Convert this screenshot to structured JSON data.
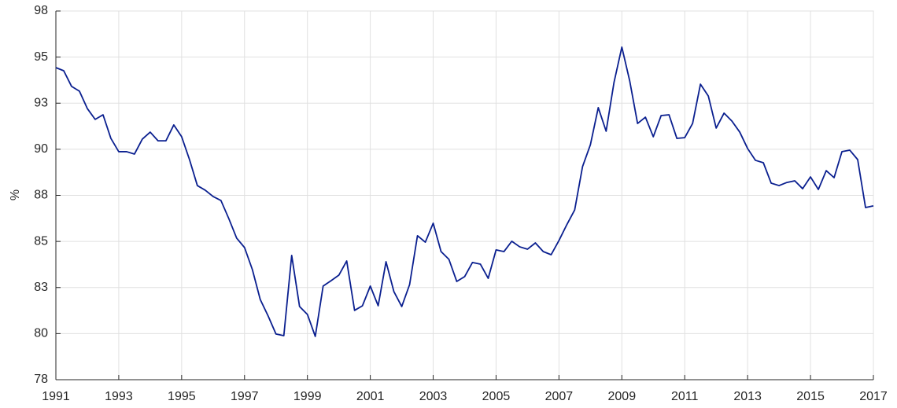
{
  "chart_data": {
    "type": "line",
    "ylabel": "%",
    "x": [
      1991,
      1991.25,
      1991.5,
      1991.75,
      1992,
      1992.25,
      1992.5,
      1992.75,
      1993,
      1993.25,
      1993.5,
      1993.75,
      1994,
      1994.25,
      1994.5,
      1994.75,
      1995,
      1995.25,
      1995.5,
      1995.75,
      1996,
      1996.25,
      1996.5,
      1996.75,
      1997,
      1997.25,
      1997.5,
      1997.75,
      1998,
      1998.25,
      1998.5,
      1998.75,
      1999,
      1999.25,
      1999.5,
      1999.75,
      2000,
      2000.25,
      2000.5,
      2000.75,
      2001,
      2001.25,
      2001.5,
      2001.75,
      2002,
      2002.25,
      2002.5,
      2002.75,
      2003,
      2003.25,
      2003.5,
      2003.75,
      2004,
      2004.25,
      2004.5,
      2004.75,
      2005,
      2005.25,
      2005.5,
      2005.75,
      2006,
      2006.25,
      2006.5,
      2006.75,
      2007,
      2007.25,
      2007.5,
      2007.75,
      2008,
      2008.25,
      2008.5,
      2008.75,
      2009,
      2009.25,
      2009.5,
      2009.75,
      2010,
      2010.25,
      2010.5,
      2010.75,
      2011,
      2011.25,
      2011.5,
      2011.75,
      2012,
      2012.25,
      2012.5,
      2012.75,
      2013,
      2013.25,
      2013.5,
      2013.75,
      2014,
      2014.25,
      2014.5,
      2014.75,
      2015,
      2015.25,
      2015.5,
      2015.75,
      2016,
      2016.25,
      2016.5,
      2016.75,
      2017
    ],
    "series": [
      {
        "color": "#0a1f8f",
        "values": [
          94.43,
          94.26,
          93.41,
          93.15,
          92.21,
          91.62,
          91.87,
          90.59,
          89.87,
          89.87,
          89.74,
          90.55,
          90.93,
          90.46,
          90.46,
          91.32,
          90.68,
          89.44,
          88.03,
          87.78,
          87.44,
          87.22,
          86.24,
          85.18,
          84.67,
          83.47,
          81.85,
          80.96,
          79.98,
          79.89,
          84.24,
          81.47,
          81.04,
          79.85,
          82.58,
          82.87,
          83.17,
          83.94,
          81.26,
          81.51,
          82.58,
          81.51,
          83.9,
          82.28,
          81.47,
          82.66,
          85.31,
          84.96,
          85.99,
          84.45,
          84.03,
          82.83,
          83.09,
          83.86,
          83.77,
          83.0,
          84.54,
          84.45,
          85.01,
          84.71,
          84.58,
          84.92,
          84.45,
          84.28,
          85.05,
          85.91,
          86.71,
          89.06,
          90.25,
          92.26,
          90.98,
          93.62,
          95.54,
          93.71,
          91.4,
          91.74,
          90.68,
          91.83,
          91.87,
          90.59,
          90.63,
          91.4,
          93.53,
          92.89,
          91.15,
          91.96,
          91.53,
          90.93,
          90.04,
          89.4,
          89.27,
          88.16,
          88.03,
          88.2,
          88.29,
          87.86,
          88.5,
          87.82,
          88.84,
          88.46,
          89.87,
          89.95,
          89.44,
          86.84,
          86.93
        ]
      }
    ],
    "xlim": [
      1991,
      2017
    ],
    "xticks": [
      1991,
      1993,
      1995,
      1997,
      1999,
      2001,
      2003,
      2005,
      2007,
      2009,
      2011,
      2013,
      2015,
      2017
    ],
    "ylim": [
      77.5,
      97.5
    ],
    "yticks": [
      {
        "value": 77.5,
        "label": "78"
      },
      80,
      {
        "value": 82.5,
        "label": "83"
      },
      85,
      {
        "value": 87.5,
        "label": "88"
      },
      90,
      {
        "value": 92.5,
        "label": "93"
      },
      95,
      {
        "value": 97.5,
        "label": "98"
      }
    ],
    "grid": true
  }
}
